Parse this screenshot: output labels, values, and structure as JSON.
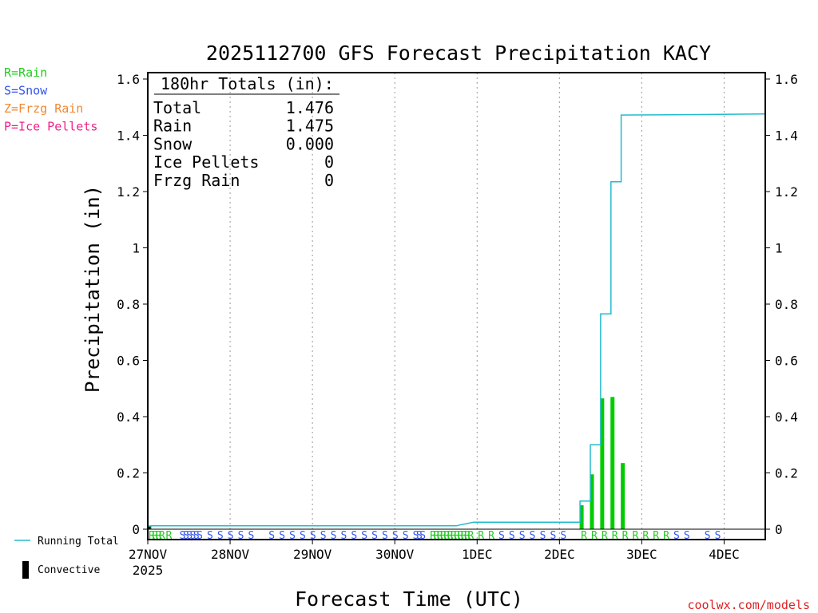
{
  "chart_data": {
    "type": "bar",
    "title": "2025112700 GFS Forecast Precipitation KACY",
    "xlabel": "Forecast Time (UTC)",
    "ylabel": "Precipitation (in)",
    "ylim": [
      0,
      1.6
    ],
    "yticks": [
      {
        "value": 0,
        "label": "0"
      },
      {
        "value": 0.2,
        "label": "0.2"
      },
      {
        "value": 0.4,
        "label": "0.4"
      },
      {
        "value": 0.6,
        "label": "0.6"
      },
      {
        "value": 0.8,
        "label": "0.8"
      },
      {
        "value": 1.0,
        "label": "1"
      },
      {
        "value": 1.2,
        "label": "1.2"
      },
      {
        "value": 1.4,
        "label": "1.4"
      },
      {
        "value": 1.6,
        "label": "1.6"
      }
    ],
    "x_unit": "forecast hour",
    "xlim": [
      0,
      180
    ],
    "xticks": [
      {
        "hour": 0,
        "label": "27NOV",
        "sublabel": "2025"
      },
      {
        "hour": 24,
        "label": "28NOV"
      },
      {
        "hour": 48,
        "label": "29NOV"
      },
      {
        "hour": 72,
        "label": "30NOV"
      },
      {
        "hour": 96,
        "label": "1DEC"
      },
      {
        "hour": 120,
        "label": "2DEC"
      },
      {
        "hour": 144,
        "label": "3DEC"
      },
      {
        "hour": 168,
        "label": "4DEC"
      }
    ],
    "legend_left": [
      {
        "label": "R=Rain",
        "color": "#22cc22"
      },
      {
        "label": "S=Snow",
        "color": "#3355ee"
      },
      {
        "label": "Z=Frzg Rain",
        "color": "#ee8833"
      },
      {
        "label": "P=Ice Pellets",
        "color": "#ee2288"
      }
    ],
    "legend_bottom": [
      {
        "label": "Running Total",
        "color": "#22bbcc",
        "kind": "line"
      },
      {
        "label": "Convective",
        "color": "#000000",
        "kind": "bar"
      }
    ],
    "totals": {
      "header": "180hr Totals (in):",
      "rows": [
        {
          "label": "Total",
          "value": "1.476"
        },
        {
          "label": "Rain",
          "value": "1.475"
        },
        {
          "label": "Snow",
          "value": "0.000"
        },
        {
          "label": "Ice Pellets",
          "value": "0"
        },
        {
          "label": "Frzg Rain",
          "value": "0"
        }
      ]
    },
    "series": [
      {
        "name": "Running Total",
        "type": "line",
        "color": "#22bbcc",
        "points": [
          [
            0,
            0.01
          ],
          [
            1,
            0.012
          ],
          [
            90,
            0.012
          ],
          [
            91,
            0.015
          ],
          [
            93,
            0.02
          ],
          [
            95,
            0.025
          ],
          [
            126,
            0.025
          ],
          [
            126,
            0.1
          ],
          [
            129,
            0.1
          ],
          [
            129,
            0.3
          ],
          [
            132,
            0.3
          ],
          [
            132,
            0.765
          ],
          [
            135,
            0.765
          ],
          [
            135,
            1.235
          ],
          [
            138,
            1.235
          ],
          [
            138,
            1.472
          ],
          [
            153,
            1.473
          ],
          [
            180,
            1.476
          ]
        ]
      },
      {
        "name": "Precipitation (3hr)",
        "type": "bar",
        "color": "#00cc00",
        "points": [
          [
            0,
            0.01
          ],
          [
            126,
            0.085
          ],
          [
            129,
            0.195
          ],
          [
            132,
            0.465
          ],
          [
            135,
            0.47
          ],
          [
            138,
            0.235
          ]
        ]
      },
      {
        "name": "Convective",
        "type": "bar",
        "color": "#000000",
        "points": [
          [
            0,
            0.01
          ]
        ]
      }
    ],
    "ptype_markers": [
      {
        "hour": 0,
        "t": "R"
      },
      {
        "hour": 1,
        "t": "R"
      },
      {
        "hour": 2,
        "t": "R"
      },
      {
        "hour": 3,
        "t": "R"
      },
      {
        "hour": 5,
        "t": "R"
      },
      {
        "hour": 9,
        "t": "S"
      },
      {
        "hour": 10,
        "t": "S"
      },
      {
        "hour": 11,
        "t": "S"
      },
      {
        "hour": 12,
        "t": "S"
      },
      {
        "hour": 13,
        "t": "S"
      },
      {
        "hour": 14,
        "t": "S"
      },
      {
        "hour": 17,
        "t": "S"
      },
      {
        "hour": 20,
        "t": "S"
      },
      {
        "hour": 23,
        "t": "S"
      },
      {
        "hour": 26,
        "t": "S"
      },
      {
        "hour": 29,
        "t": "S"
      },
      {
        "hour": 35,
        "t": "S"
      },
      {
        "hour": 38,
        "t": "S"
      },
      {
        "hour": 41,
        "t": "S"
      },
      {
        "hour": 44,
        "t": "S"
      },
      {
        "hour": 47,
        "t": "S"
      },
      {
        "hour": 50,
        "t": "S"
      },
      {
        "hour": 53,
        "t": "S"
      },
      {
        "hour": 56,
        "t": "S"
      },
      {
        "hour": 59,
        "t": "S"
      },
      {
        "hour": 62,
        "t": "S"
      },
      {
        "hour": 65,
        "t": "S"
      },
      {
        "hour": 68,
        "t": "S"
      },
      {
        "hour": 71,
        "t": "S"
      },
      {
        "hour": 74,
        "t": "S"
      },
      {
        "hour": 77,
        "t": "S"
      },
      {
        "hour": 78,
        "t": "S"
      },
      {
        "hour": 79,
        "t": "S"
      },
      {
        "hour": 82,
        "t": "R"
      },
      {
        "hour": 83,
        "t": "R"
      },
      {
        "hour": 84,
        "t": "R"
      },
      {
        "hour": 85,
        "t": "R"
      },
      {
        "hour": 86,
        "t": "R"
      },
      {
        "hour": 87,
        "t": "R"
      },
      {
        "hour": 88,
        "t": "R"
      },
      {
        "hour": 89,
        "t": "R"
      },
      {
        "hour": 90,
        "t": "R"
      },
      {
        "hour": 91,
        "t": "R"
      },
      {
        "hour": 92,
        "t": "R"
      },
      {
        "hour": 93,
        "t": "R"
      },
      {
        "hour": 96,
        "t": "R"
      },
      {
        "hour": 99,
        "t": "R"
      },
      {
        "hour": 102,
        "t": "S"
      },
      {
        "hour": 105,
        "t": "S"
      },
      {
        "hour": 108,
        "t": "S"
      },
      {
        "hour": 111,
        "t": "S"
      },
      {
        "hour": 114,
        "t": "S"
      },
      {
        "hour": 117,
        "t": "S"
      },
      {
        "hour": 120,
        "t": "S"
      },
      {
        "hour": 126,
        "t": "R"
      },
      {
        "hour": 129,
        "t": "R"
      },
      {
        "hour": 132,
        "t": "R"
      },
      {
        "hour": 135,
        "t": "R"
      },
      {
        "hour": 138,
        "t": "R"
      },
      {
        "hour": 141,
        "t": "R"
      },
      {
        "hour": 144,
        "t": "R"
      },
      {
        "hour": 147,
        "t": "R"
      },
      {
        "hour": 150,
        "t": "R"
      },
      {
        "hour": 153,
        "t": "S"
      },
      {
        "hour": 156,
        "t": "S"
      },
      {
        "hour": 162,
        "t": "S"
      },
      {
        "hour": 165,
        "t": "S"
      }
    ],
    "credit": "coolwx.com/models"
  }
}
